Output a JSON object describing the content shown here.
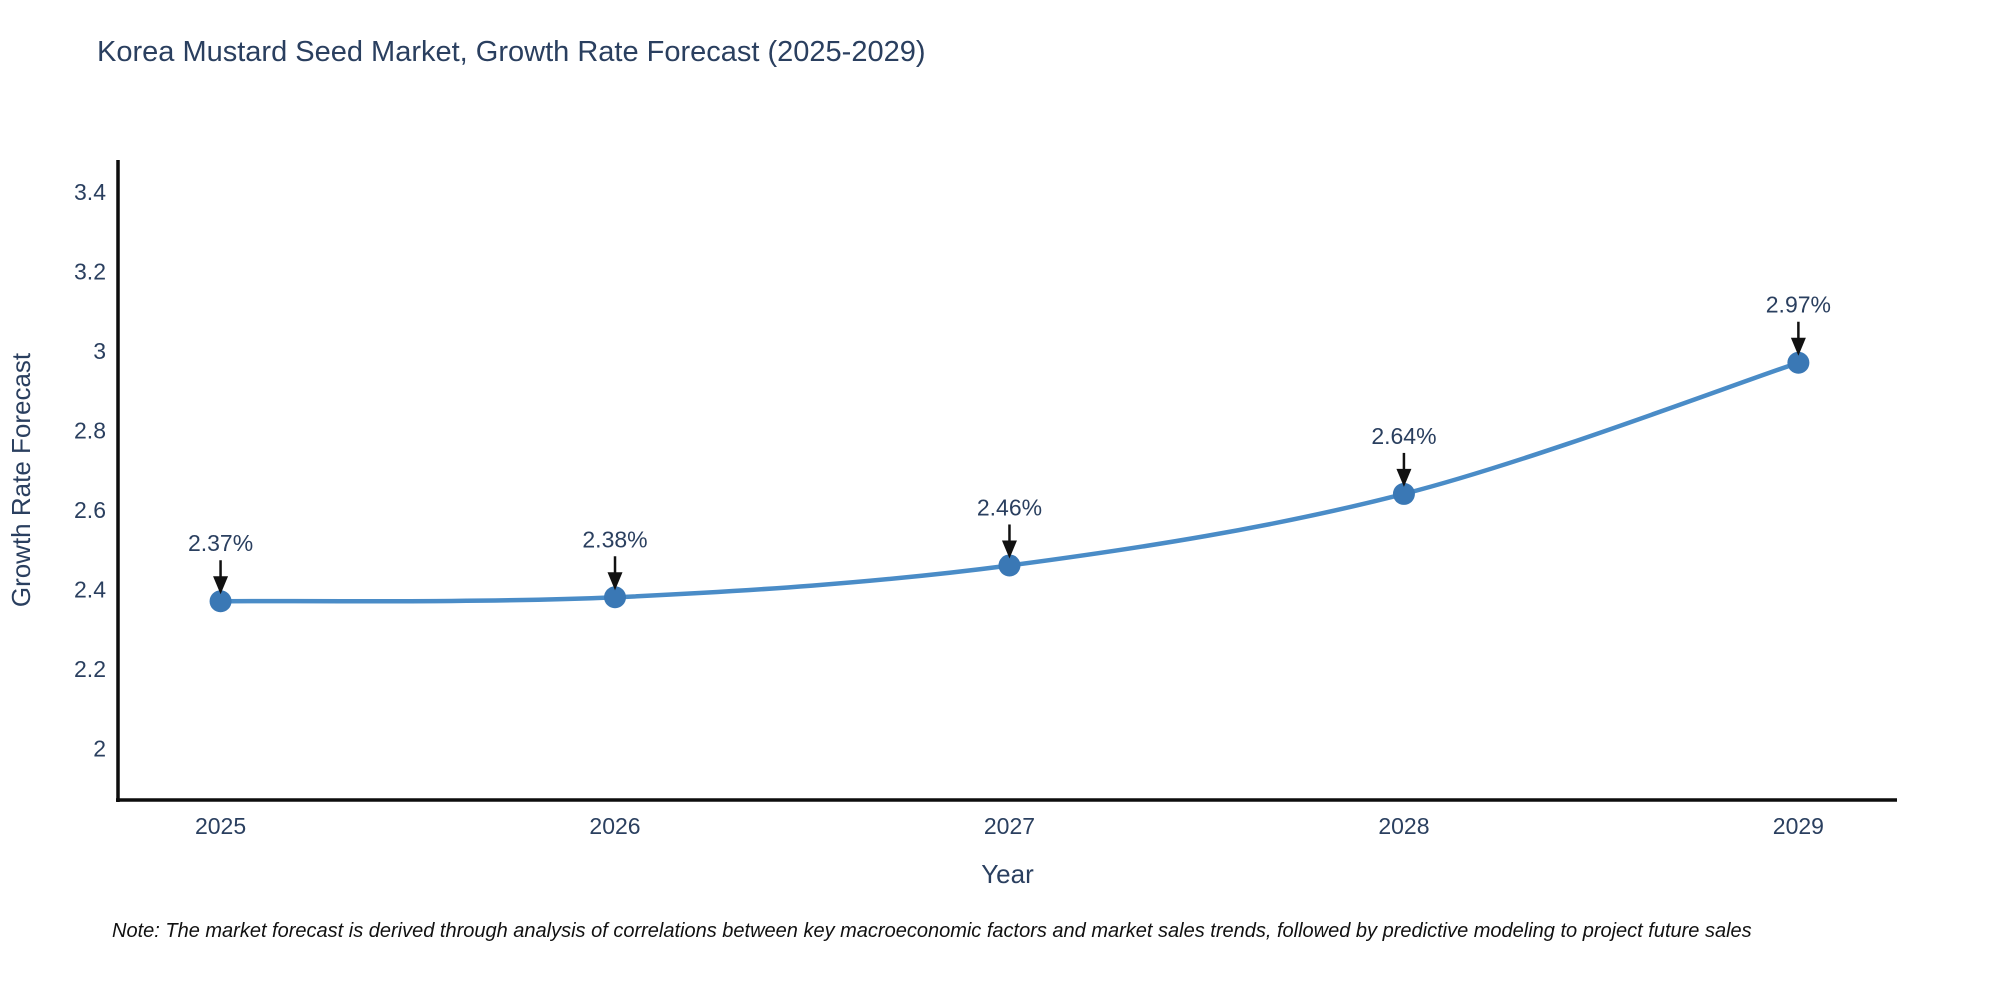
{
  "title": "Korea Mustard Seed Market, Growth Rate Forecast (2025-2029)",
  "note": "Note: The market forecast is derived through analysis of correlations between key macroeconomic factors and market sales trends, followed by predictive modeling to project future sales",
  "chart_data": {
    "type": "line",
    "title": "Korea Mustard Seed Market, Growth Rate Forecast (2025-2029)",
    "xlabel": "Year",
    "ylabel": "Growth Rate Forecast",
    "x": [
      2025,
      2026,
      2027,
      2028,
      2029
    ],
    "series": [
      {
        "name": "Growth Rate Forecast",
        "values": [
          2.37,
          2.38,
          2.46,
          2.64,
          2.97
        ]
      }
    ],
    "point_labels": [
      "2.37%",
      "2.38%",
      "2.46%",
      "2.64%",
      "2.97%"
    ],
    "x_ticks": [
      "2025",
      "2026",
      "2027",
      "2028",
      "2029"
    ],
    "y_ticks": [
      2,
      2.2,
      2.4,
      2.6,
      2.8,
      3,
      3.2,
      3.4
    ],
    "xlim": [
      2024.74,
      2029.25
    ],
    "ylim": [
      1.87,
      3.48
    ],
    "grid": false,
    "legend": "none",
    "line_shape": "spline",
    "annotations": "value labels with downward black arrows above each point",
    "colors": {
      "line": "#4a8cc7",
      "marker": "#3a78b5",
      "arrow": "#111111",
      "text": "#2a3f5f",
      "axis": "#0d0d0d"
    }
  }
}
